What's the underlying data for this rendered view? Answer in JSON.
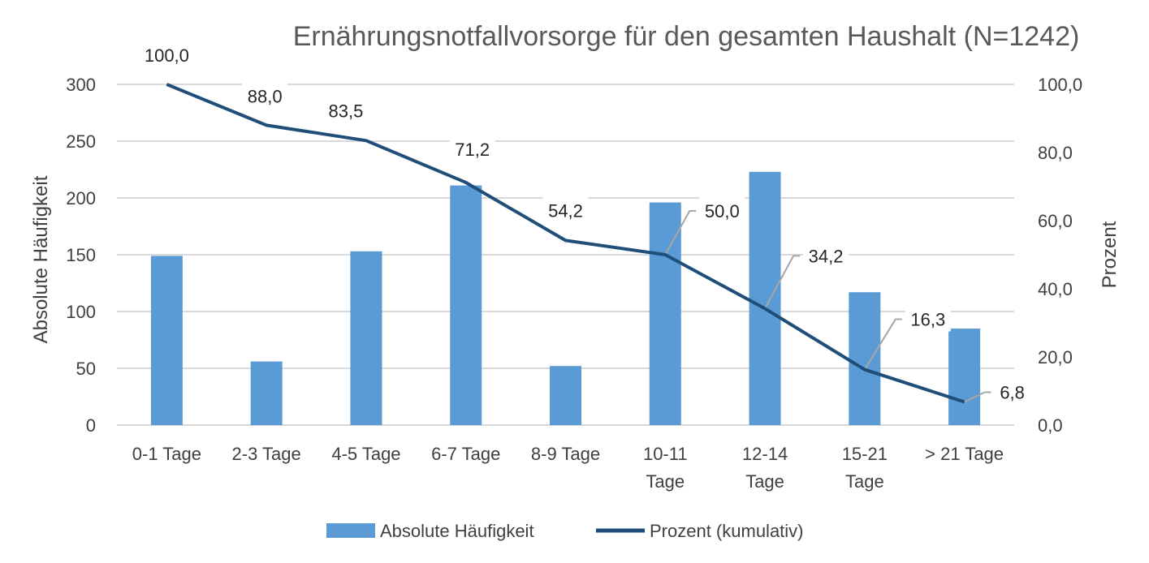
{
  "chart_data": {
    "type": "bar",
    "title": "Ernährungsnotfallvorsorge für den gesamten Haushalt (N=1242)",
    "categories": [
      [
        "0-1 Tage"
      ],
      [
        "2-3 Tage"
      ],
      [
        "4-5 Tage"
      ],
      [
        "6-7 Tage"
      ],
      [
        "8-9 Tage"
      ],
      [
        "10-11",
        "Tage"
      ],
      [
        "12-14",
        "Tage"
      ],
      [
        "15-21",
        "Tage"
      ],
      [
        "> 21 Tage"
      ]
    ],
    "series": [
      {
        "name": "Absolute Häufigkeit",
        "type": "bar",
        "axis": "left",
        "color": "#5B9BD5",
        "values": [
          149,
          56,
          153,
          211,
          52,
          196,
          223,
          117,
          85
        ]
      },
      {
        "name": "Prozent (kumulativ)",
        "type": "line",
        "axis": "right",
        "color": "#1F4E79",
        "values": [
          100.0,
          88.0,
          83.5,
          71.2,
          54.2,
          50.0,
          34.2,
          16.3,
          6.8
        ],
        "data_labels": [
          "100,0",
          "88,0",
          "83,5",
          "71,2",
          "54,2",
          "50,0",
          "34,2",
          "16,3",
          "6,8"
        ]
      }
    ],
    "ylabel": "Absolute Häufigkeit",
    "ylim": [
      0,
      300
    ],
    "yticks": [
      0,
      50,
      100,
      150,
      200,
      250,
      300
    ],
    "y2label": "Prozent",
    "y2lim": [
      0,
      100
    ],
    "y2ticks": [
      "0,0",
      "20,0",
      "40,0",
      "60,0",
      "80,0",
      "100,0"
    ],
    "grid": true,
    "legend": "bottom"
  }
}
